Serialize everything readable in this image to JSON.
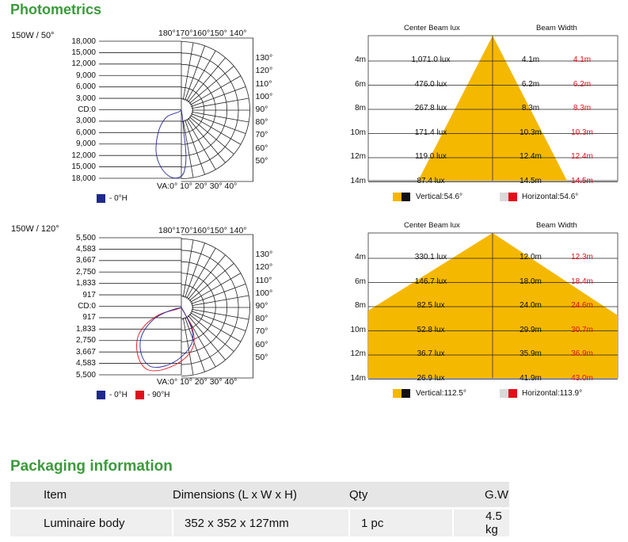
{
  "sections": {
    "photometrics_title": "Photometrics",
    "packaging_title": "Packaging information"
  },
  "polar_charts": [
    {
      "label": "150W / 50°",
      "top_label": "180°170°160°150° 140°",
      "right_labels": [
        "130°",
        "120°",
        "110°",
        "100°",
        "90°",
        "80°",
        "70°",
        "60°",
        "50°"
      ],
      "bottom_label": "VA:0° 10° 20°  30°   40°",
      "cd_scale": [
        "18,000",
        "15,000",
        "12,000",
        "9,000",
        "6,000",
        "3,000",
        "CD:0",
        "3,000",
        "6,000",
        "9,000",
        "12,000",
        "15,000",
        "18,000"
      ],
      "legend": [
        {
          "label": "- 0°H",
          "color": "#1f2a8a"
        }
      ]
    },
    {
      "label": "150W / 120°",
      "top_label": "180°170°160°150° 140°",
      "right_labels": [
        "130°",
        "120°",
        "110°",
        "100°",
        "90°",
        "80°",
        "70°",
        "60°",
        "50°"
      ],
      "bottom_label": "VA:0° 10° 20° 30° 40°",
      "cd_scale": [
        "5,500",
        "4,583",
        "3,667",
        "2,750",
        "1,833",
        "917",
        "CD:0",
        "917",
        "1,833",
        "2,750",
        "3,667",
        "4,583",
        "5,500"
      ],
      "legend": [
        {
          "label": "- 0°H",
          "color": "#1f2a8a"
        },
        {
          "label": "- 90°H",
          "color": "#e0101a"
        }
      ]
    }
  ],
  "beam_charts": [
    {
      "col_headers": {
        "lux": "Center Beam lux",
        "width": "Beam Width"
      },
      "rows": [
        {
          "dist": "4m",
          "lux": "1,071.0 lux",
          "v": "4.1m",
          "h": "4.1m"
        },
        {
          "dist": "6m",
          "lux": "476.0 lux",
          "v": "6.2m",
          "h": "6.2m"
        },
        {
          "dist": "8m",
          "lux": "267.8 lux",
          "v": "8.3m",
          "h": "8.3m"
        },
        {
          "dist": "10m",
          "lux": "171.4 lux",
          "v": "10.3m",
          "h": "10.3m"
        },
        {
          "dist": "12m",
          "lux": "119.0 lux",
          "v": "12.4m",
          "h": "12.4m"
        },
        {
          "dist": "14m",
          "lux": "87.4 lux",
          "v": "14.5m",
          "h": "14.5m"
        }
      ],
      "legend_vertical": "Vertical:54.6°",
      "legend_horizontal": "Horizontal:54.6°"
    },
    {
      "col_headers": {
        "lux": "Center Beam lux",
        "width": "Beam Width"
      },
      "rows": [
        {
          "dist": "4m",
          "lux": "330.1 lux",
          "v": "12.0m",
          "h": "12.3m"
        },
        {
          "dist": "6m",
          "lux": "146.7 lux",
          "v": "18.0m",
          "h": "18.4m"
        },
        {
          "dist": "8m",
          "lux": "82.5 lux",
          "v": "24.0m",
          "h": "24.6m"
        },
        {
          "dist": "10m",
          "lux": "52.8 lux",
          "v": "29.9m",
          "h": "30.7m"
        },
        {
          "dist": "12m",
          "lux": "36.7 lux",
          "v": "35.9m",
          "h": "36.9m"
        },
        {
          "dist": "14m",
          "lux": "26.9 lux",
          "v": "41.9m",
          "h": "43.0m"
        }
      ],
      "legend_vertical": "Vertical:112.5°",
      "legend_horizontal": "Horizontal:113.9°"
    }
  ],
  "packaging": {
    "headers": [
      "Item",
      "Dimensions (L x W x H)",
      "Qty",
      "G.W"
    ],
    "rows": [
      [
        "Luminaire body",
        "352 x 352 x 127mm",
        "1 pc",
        "4.5 kg"
      ]
    ]
  },
  "colors": {
    "accent_green": "#3c9a3c",
    "beam_fill": "#f5b800",
    "h_red": "#e0101a",
    "v_blue": "#1f2a8a"
  }
}
